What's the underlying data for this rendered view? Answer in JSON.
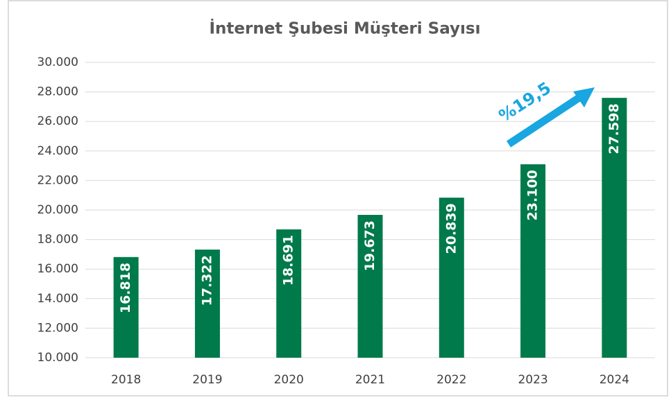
{
  "chart_data": {
    "type": "bar",
    "title": "İnternet Şubesi Müşteri Sayısı",
    "categories": [
      "2018",
      "2019",
      "2020",
      "2021",
      "2022",
      "2023",
      "2024"
    ],
    "values": [
      16818,
      17322,
      18691,
      19673,
      20839,
      23100,
      27598
    ],
    "value_labels": [
      "16.818",
      "17.322",
      "18.691",
      "19.673",
      "20.839",
      "23.100",
      "27.598"
    ],
    "color": "#007a4b",
    "ylim": [
      10000,
      30000
    ],
    "yticks": [
      {
        "value": 10000,
        "label": "10.000"
      },
      {
        "value": 12000,
        "label": "12.000"
      },
      {
        "value": 14000,
        "label": "14.000"
      },
      {
        "value": 16000,
        "label": "16.000"
      },
      {
        "value": 18000,
        "label": "18.000"
      },
      {
        "value": 20000,
        "label": "20.000"
      },
      {
        "value": 22000,
        "label": "22.000"
      },
      {
        "value": 24000,
        "label": "24.000"
      },
      {
        "value": 26000,
        "label": "26.000"
      },
      {
        "value": 28000,
        "label": "28.000"
      },
      {
        "value": 30000,
        "label": "30.000"
      }
    ],
    "grid": true,
    "annotation": "%19,5"
  }
}
